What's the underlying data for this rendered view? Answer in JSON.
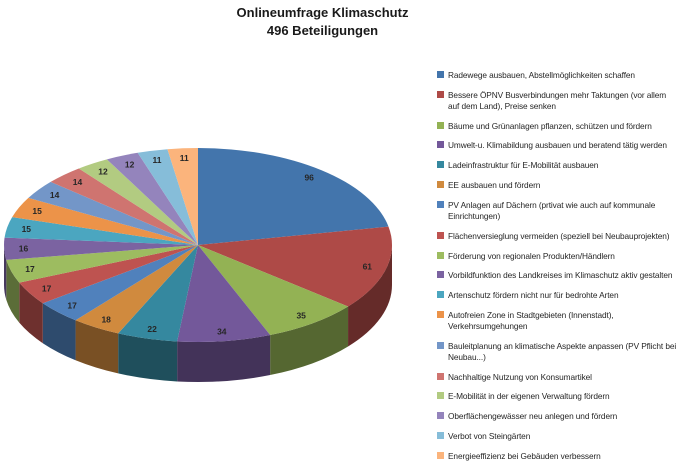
{
  "title": {
    "line1": "Onlineumfrage Klimaschutz",
    "line2": "496 Beteiligungen"
  },
  "chart_data": {
    "type": "pie",
    "style": "3d-pie",
    "title": "Onlineumfrage Klimaschutz",
    "subtitle": "496 Beteiligungen",
    "legend_position": "right",
    "data_labels": "value",
    "slices": [
      {
        "label": "Radewege ausbauen, Abstellmöglichkeiten schaffen",
        "value": 96,
        "color": "#4375AC"
      },
      {
        "label": "Bessere ÖPNV Busverbindungen mehr Taktungen (vor allem auf dem Land), Preise senken",
        "value": 61,
        "color": "#AE4A47"
      },
      {
        "label": "Bäume und Grünanlagen pflanzen, schützen und fördern",
        "value": 35,
        "color": "#93B254"
      },
      {
        "label": "Umwelt-u. Klimabildung ausbauen und beratend tätig werden",
        "value": 34,
        "color": "#73589A"
      },
      {
        "label": "Ladeinfrastruktur für E-Mobilität ausbauen",
        "value": 22,
        "color": "#35889F"
      },
      {
        "label": "EE ausbauen und fördern",
        "value": 18,
        "color": "#D08A3E"
      },
      {
        "label": "PV Anlagen auf Dächern (prtivat wie auch auf kommunale Einrichtungen)",
        "value": 17,
        "color": "#5081BC"
      },
      {
        "label": "Flächenversieglung vermeiden (speziell bei Neubauprojekten)",
        "value": 17,
        "color": "#BE5350"
      },
      {
        "label": "Förderung von regionalen Produkten/Händlern",
        "value": 17,
        "color": "#9DBC60"
      },
      {
        "label": "Vorbildfunktion des Landkreises im Klimaschutz aktiv gestalten",
        "value": 16,
        "color": "#7B63A1"
      },
      {
        "label": "Artenschutz fördern nicht nur für bedrohte Arten",
        "value": 15,
        "color": "#4BA6C0"
      },
      {
        "label": "Autofreien Zone in Stadtgebieten (Innenstadt), Verkehrsumgehungen",
        "value": 15,
        "color": "#EC9349"
      },
      {
        "label": "Bauleitplanung an klimatische Aspekte anpassen (PV Pflicht bei Neubau...)",
        "value": 14,
        "color": "#7396C8"
      },
      {
        "label": "Nachhaltige Nutzung von Konsumartikel",
        "value": 14,
        "color": "#CF7470"
      },
      {
        "label": "E-Mobilität in der eigenen Verwaltung fördern",
        "value": 12,
        "color": "#B2CB81"
      },
      {
        "label": "Oberflächengewässer neu anlegen und fördern",
        "value": 12,
        "color": "#9484BC"
      },
      {
        "label": "Verbot von Steingärten",
        "value": 11,
        "color": "#86BDD9"
      },
      {
        "label": "Energieeffizienz bei Gebäuden verbessern",
        "value": 11,
        "color": "#FBB47C"
      }
    ]
  }
}
